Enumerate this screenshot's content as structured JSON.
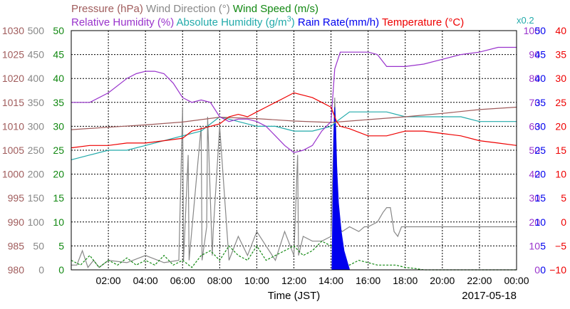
{
  "chart_data": {
    "type": "line",
    "date_label": "2017-05-18",
    "xlabel": "Time (JST)",
    "x_ticks": [
      "02:00",
      "04:00",
      "06:00",
      "08:00",
      "10:00",
      "12:00",
      "14:00",
      "16:00",
      "18:00",
      "20:00",
      "22:00",
      "00:00"
    ],
    "x_range_hours": [
      0,
      24
    ],
    "grid": true,
    "legend_row1": [
      {
        "label": "Pressure (hPa)",
        "color": "#a05c5c"
      },
      {
        "label": "Wind Direction (°)",
        "color": "#888888"
      },
      {
        "label": "Wind Speed (m/s)",
        "color": "#118811"
      }
    ],
    "legend_row2": [
      {
        "label": "Relative Humidity (%)",
        "color": "#9933cc"
      },
      {
        "label": "Absolute Humidity (g/m",
        "color": "#22aaaa",
        "superscript": "3",
        "suffix": ")"
      },
      {
        "label": "Rain Rate(mm/h)",
        "color": "#0000ee"
      },
      {
        "label": "Temperature (°C)",
        "color": "#ee0000"
      }
    ],
    "rh_scale_note": "x0.2",
    "axes": {
      "pressure": {
        "color": "#a05c5c",
        "ticks": [
          "1030",
          "1025",
          "1020",
          "1015",
          "1010",
          "1005",
          "1000",
          "995",
          "990",
          "985",
          "980"
        ],
        "range": [
          980,
          1030
        ]
      },
      "wind_dir": {
        "color": "#888888",
        "ticks": [
          "500",
          "450",
          "400",
          "350",
          "300",
          "250",
          "200",
          "150",
          "100",
          "50",
          "0"
        ],
        "range": [
          0,
          500
        ]
      },
      "wind_speed": {
        "color": "#118811",
        "ticks": [
          "50",
          "45",
          "40",
          "35",
          "30",
          "25",
          "20",
          "15",
          "10",
          "5",
          "0"
        ],
        "range": [
          0,
          50
        ]
      },
      "humidity": {
        "color": "#9933cc",
        "ticks": [
          "100",
          "90",
          "80",
          "70",
          "60",
          "50",
          "40",
          "30",
          "20",
          "10",
          "0"
        ],
        "range": [
          0,
          100
        ]
      },
      "rain": {
        "color": "#0000ee",
        "ticks": [
          "50",
          "45",
          "40",
          "35",
          "30",
          "25",
          "20",
          "15",
          "10",
          "5",
          "0"
        ],
        "range": [
          0,
          50
        ]
      },
      "temperature": {
        "color": "#ee0000",
        "ticks": [
          "40",
          "35",
          "30",
          "25",
          "20",
          "15",
          "10",
          "5",
          "0",
          "−5",
          "−10"
        ],
        "range": [
          -10,
          40
        ]
      }
    },
    "series": [
      {
        "name": "Pressure (hPa)",
        "axis": "pressure",
        "color": "#a05c5c",
        "x": [
          0,
          2,
          4,
          6,
          8,
          10,
          12,
          14,
          16,
          18,
          20,
          22,
          24
        ],
        "values": [
          1009.3,
          1009.8,
          1010.3,
          1010.9,
          1011.9,
          1011.6,
          1011.1,
          1010.8,
          1011.4,
          1012.0,
          1012.7,
          1013.5,
          1014.0
        ]
      },
      {
        "name": "Relative Humidity (%)",
        "axis": "humidity",
        "color": "#9933cc",
        "x": [
          0,
          1,
          2,
          3,
          3.5,
          4,
          4.5,
          5,
          5.5,
          6,
          6.5,
          7,
          7.5,
          8,
          8.5,
          9,
          9.5,
          10,
          10.5,
          11,
          11.5,
          12,
          12.5,
          13,
          13.5,
          14,
          14.2,
          14.5,
          15,
          16,
          16.5,
          17,
          17.5,
          18,
          19,
          20,
          21,
          22,
          23,
          24
        ],
        "values": [
          70,
          70,
          74,
          80,
          82,
          83,
          83,
          82,
          78,
          72,
          70,
          71,
          70,
          64,
          62,
          63,
          63,
          62,
          60,
          56,
          52,
          49,
          50,
          52,
          58,
          62,
          84,
          91,
          91,
          91,
          90,
          85,
          85,
          85,
          86,
          88,
          90,
          91,
          93,
          93
        ]
      },
      {
        "name": "Absolute Humidity (g/m³)",
        "axis": "wind_speed",
        "color": "#22aaaa",
        "x": [
          0,
          1,
          2,
          3,
          4,
          5,
          6,
          7,
          8,
          9,
          10,
          11,
          12,
          13,
          14,
          14.3,
          15,
          16,
          17,
          18,
          19,
          20,
          21,
          22,
          23,
          24
        ],
        "values": [
          23,
          24,
          25,
          25,
          26,
          27,
          28,
          29,
          32,
          31,
          30,
          30,
          29,
          29,
          30,
          31,
          33,
          33,
          33,
          32,
          32,
          32,
          32,
          31,
          31,
          31
        ]
      },
      {
        "name": "Temperature (°C)",
        "axis": "temperature",
        "color": "#ee0000",
        "x": [
          0,
          1,
          2,
          3,
          4,
          5,
          6,
          6.5,
          7,
          7.5,
          8,
          8.5,
          9,
          9.5,
          10,
          10.5,
          11,
          11.5,
          12,
          12.5,
          13,
          13.5,
          14,
          14.3,
          14.5,
          15,
          16,
          17,
          18,
          19,
          20,
          21,
          22,
          23,
          24
        ],
        "values": [
          15.5,
          16,
          16,
          16.5,
          16.5,
          17,
          17.5,
          19,
          19.5,
          20,
          20.5,
          22,
          22.5,
          22,
          23,
          24,
          25,
          26,
          27,
          26.5,
          26,
          25,
          24,
          21,
          20,
          19.5,
          18,
          18,
          19,
          19,
          18.5,
          18,
          17,
          16.5,
          16
        ]
      },
      {
        "name": "Rain Rate(mm/h)",
        "axis": "rain",
        "color": "#0000ee",
        "type": "area",
        "x": [
          14.05,
          14.15,
          14.2,
          14.25,
          14.3,
          14.4,
          14.55,
          14.7,
          14.85,
          15.0
        ],
        "values": [
          0,
          28,
          34,
          30,
          22,
          14,
          8,
          4,
          2,
          0
        ]
      },
      {
        "name": "Wind Direction (°)",
        "axis": "wind_dir",
        "color": "#888888",
        "x": [
          0,
          0.3,
          0.6,
          0.9,
          1.2,
          1.5,
          2,
          3,
          4,
          5,
          5.8,
          6.0,
          6.05,
          6.3,
          6.35,
          7.0,
          7.05,
          7.3,
          7.35,
          7.6,
          7.65,
          8.0,
          8.5,
          9.0,
          9.5,
          10,
          10.5,
          11,
          11.5,
          12,
          12.2,
          12.25,
          12.5,
          13,
          13.5,
          14,
          14.2,
          14.4,
          14.6,
          15,
          15.5,
          15.8,
          16,
          16.5,
          16.8,
          17,
          17.2,
          17.4,
          17.6,
          17.8,
          18,
          19,
          20,
          21,
          22,
          23,
          24
        ],
        "values": [
          10,
          10,
          40,
          5,
          20,
          5,
          20,
          15,
          30,
          15,
          20,
          340,
          20,
          240,
          20,
          300,
          20,
          90,
          320,
          30,
          80,
          300,
          20,
          70,
          30,
          80,
          50,
          20,
          80,
          30,
          240,
          30,
          70,
          60,
          60,
          70,
          360,
          90,
          80,
          90,
          80,
          90,
          90,
          100,
          120,
          130,
          130,
          80,
          70,
          90,
          90,
          90,
          90,
          90,
          90,
          90,
          90
        ]
      },
      {
        "name": "Wind Speed (m/s)",
        "axis": "wind_speed",
        "color": "#118811",
        "dashed": true,
        "x": [
          0,
          0.5,
          1,
          1.5,
          2,
          2.5,
          3,
          3.5,
          4,
          4.5,
          5,
          5.5,
          6,
          6.5,
          7,
          7.5,
          8,
          8.5,
          9,
          9.5,
          10,
          10.5,
          11,
          11.5,
          12,
          12.5,
          13,
          13.5,
          14,
          14.5,
          15,
          15.5,
          16,
          16.5,
          17,
          17.5,
          18,
          18.5,
          19,
          20,
          21,
          22,
          23,
          24
        ],
        "values": [
          2,
          1,
          3,
          0.5,
          2,
          1,
          2.5,
          1,
          2,
          1,
          3,
          1,
          2,
          0.5,
          3,
          4,
          2,
          5,
          3,
          2,
          5,
          2,
          3,
          4,
          5,
          3,
          4,
          6,
          5,
          2,
          1,
          2,
          1.5,
          1,
          1,
          1,
          0.5,
          0.3,
          0,
          0,
          0,
          0,
          0,
          0
        ]
      }
    ]
  }
}
